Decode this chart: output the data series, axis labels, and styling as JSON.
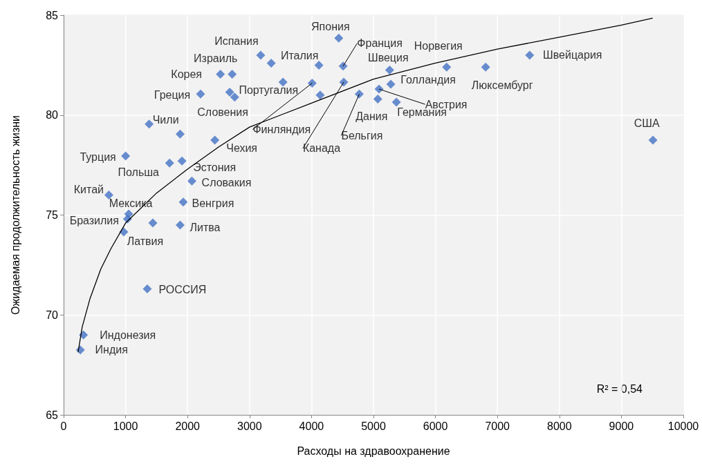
{
  "chart_data": {
    "type": "scatter",
    "xlabel": "Расходы на здравоохранение",
    "ylabel": "Ожидаемая продолжительность жизни",
    "xlim": [
      0,
      10000
    ],
    "xticks": [
      0,
      1000,
      2000,
      3000,
      4000,
      5000,
      6000,
      7000,
      8000,
      9000,
      10000
    ],
    "ylim": [
      65,
      85
    ],
    "yticks": [
      65,
      70,
      75,
      80,
      85
    ],
    "grid": true,
    "marker": "diamond",
    "series": [
      {
        "type": "scatter",
        "color": "#4472c4",
        "x": [
          270,
          320,
          1350,
          970,
          1030,
          1050,
          730,
          1880,
          1930,
          2070,
          1710,
          1910,
          1000,
          1380,
          2440,
          2680,
          2760,
          2210,
          2530,
          2720,
          3180,
          3350,
          4440,
          4510,
          4010,
          4520,
          4770,
          5070,
          5370,
          5090,
          5280,
          5260,
          6180,
          6810,
          7520,
          9510,
          4120,
          3540,
          4140,
          1880,
          1440
        ],
        "values": [
          68.25,
          69.0,
          71.3,
          74.15,
          74.8,
          75.05,
          76.0,
          74.5,
          75.65,
          76.7,
          77.6,
          77.7,
          77.95,
          79.55,
          78.75,
          81.15,
          80.9,
          81.05,
          82.05,
          82.05,
          83.0,
          82.6,
          83.85,
          82.45,
          81.6,
          81.65,
          81.05,
          80.8,
          80.65,
          81.3,
          81.55,
          82.25,
          82.4,
          82.4,
          83.0,
          78.75,
          82.5,
          81.65,
          81.0,
          79.05,
          74.6
        ]
      },
      {
        "type": "line",
        "color": "#000000",
        "marker": "none",
        "line_style": "solid",
        "x": [
          234,
          300,
          424,
          600,
          760,
          1000,
          1500,
          2000,
          2500,
          3000,
          3500,
          4000,
          5000,
          6000,
          7000,
          8000,
          9000,
          9500
        ],
        "values": [
          68.15,
          69.4,
          70.8,
          72.3,
          73.3,
          74.6,
          76.1,
          77.3,
          78.4,
          79.4,
          80.0,
          80.6,
          81.8,
          82.6,
          83.3,
          83.9,
          84.5,
          84.85
        ]
      }
    ],
    "annotations": [
      {
        "text": "Индия",
        "x": 270,
        "y": 68.25
      },
      {
        "text": "Индонезия",
        "x": 320,
        "y": 69.0
      },
      {
        "text": "РОССИЯ",
        "x": 1350,
        "y": 71.3
      },
      {
        "text": "Латвия",
        "x": 970,
        "y": 74.15
      },
      {
        "text": "Бразилия",
        "x": 1030,
        "y": 74.8
      },
      {
        "text": "Мексика",
        "x": 1050,
        "y": 75.05
      },
      {
        "text": "Китай",
        "x": 730,
        "y": 76.0
      },
      {
        "text": "Литва",
        "x": 1880,
        "y": 74.5
      },
      {
        "text": "Венгрия",
        "x": 1930,
        "y": 75.65
      },
      {
        "text": "Словакия",
        "x": 2070,
        "y": 76.7
      },
      {
        "text": "Польша",
        "x": 1710,
        "y": 77.6
      },
      {
        "text": "Эстония",
        "x": 1910,
        "y": 77.7
      },
      {
        "text": "Турция",
        "x": 1000,
        "y": 77.95
      },
      {
        "text": "Чили",
        "x": 1380,
        "y": 79.55
      },
      {
        "text": "Чехия",
        "x": 2440,
        "y": 78.75
      },
      {
        "text": "Словения",
        "x": 2680,
        "y": 81.15
      },
      {
        "text": "Португалия",
        "x": 2760,
        "y": 80.9
      },
      {
        "text": "Греция",
        "x": 2210,
        "y": 81.05
      },
      {
        "text": "Корея",
        "x": 2530,
        "y": 82.05
      },
      {
        "text": "Израиль",
        "x": 2720,
        "y": 82.05
      },
      {
        "text": "Испания",
        "x": 3180,
        "y": 83.0
      },
      {
        "text": "Италия",
        "x": 3350,
        "y": 82.6
      },
      {
        "text": "Япония",
        "x": 4440,
        "y": 83.85
      },
      {
        "text": "Франция",
        "x": 4510,
        "y": 82.45
      },
      {
        "text": "Финляндия",
        "x": 4010,
        "y": 81.6
      },
      {
        "text": "Канада",
        "x": 4520,
        "y": 81.65
      },
      {
        "text": "Бельгия",
        "x": 4770,
        "y": 81.05
      },
      {
        "text": "Дания",
        "x": 5070,
        "y": 80.8
      },
      {
        "text": "Германия",
        "x": 5370,
        "y": 80.65
      },
      {
        "text": "Австрия",
        "x": 5090,
        "y": 81.3
      },
      {
        "text": "Голландия",
        "x": 5280,
        "y": 81.55
      },
      {
        "text": "Швеция",
        "x": 5260,
        "y": 82.25
      },
      {
        "text": "Норвегия",
        "x": 6180,
        "y": 82.4
      },
      {
        "text": "Люксембург",
        "x": 6810,
        "y": 82.4
      },
      {
        "text": "Швейцария",
        "x": 7520,
        "y": 83.0
      },
      {
        "text": "США",
        "x": 9510,
        "y": 78.75
      },
      "R² = 0,54"
    ]
  }
}
